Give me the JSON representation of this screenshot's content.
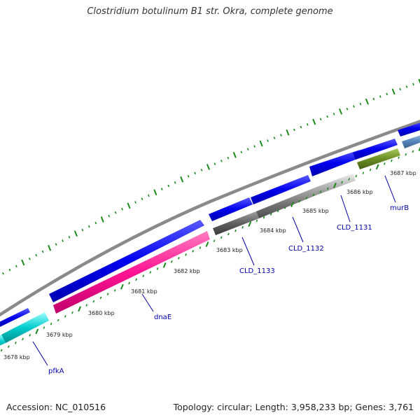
{
  "title": "Clostridium botulinum B1 str. Okra, complete genome",
  "footer": {
    "accession": "Accession: NC_010516",
    "summary": "Topology: circular; Length: 3,958,233 bp; Genes: 3,761"
  },
  "colors": {
    "backbone": "#8a8a8a",
    "forward_cds": "#0000ee",
    "tick": "#1a8a1a",
    "gene_label": "#0000aa",
    "kbp_label": "#222222"
  },
  "kbp_labels": [
    "3678 kbp",
    "3679 kbp",
    "3680 kbp",
    "3681 kbp",
    "3682 kbp",
    "3683 kbp",
    "3684 kbp",
    "3685 kbp",
    "3686 kbp",
    "3687 kbp"
  ],
  "gene_labels": [
    {
      "name": "pfkA",
      "color": "#00cccc"
    },
    {
      "name": "dnaE",
      "color": "#ff1493"
    },
    {
      "name": "CLD_1133",
      "color": "#606060"
    },
    {
      "name": "CLD_1132",
      "color": "#707070"
    },
    {
      "name": "CLD_1131",
      "color": "#b8b8b8"
    },
    {
      "name": "murB",
      "color": "#6b8e23"
    }
  ]
}
